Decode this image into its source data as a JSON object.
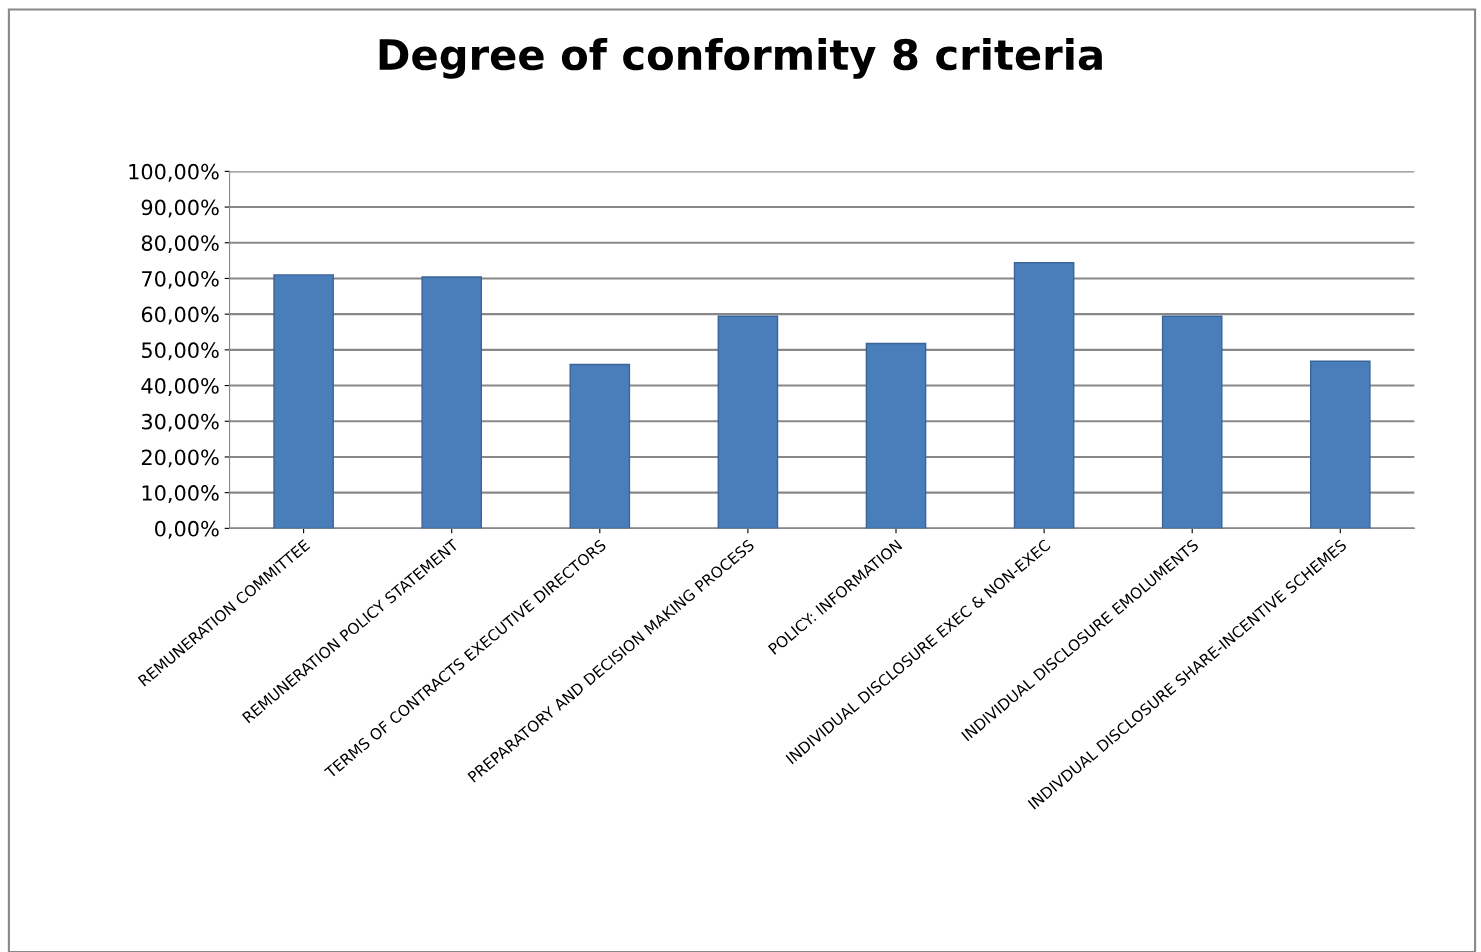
{
  "chart_data": {
    "type": "bar",
    "title": "Degree of conformity 8 criteria",
    "categories": [
      "REMUNERATION COMMITTEE",
      "REMUNERATION POLICY STATEMENT",
      "TERMS OF CONTRACTS EXECUTIVE DIRECTORS",
      "PREPARATORY AND DECISION MAKING PROCESS",
      "POLICY: INFORMATION",
      "INDIVIDUAL DISCLOSURE EXEC & NON-EXEC",
      "INDIVIDUAL DISCLOSURE EMOLUMENTS",
      "INDIVDUAL DISCLOSURE SHARE-INCENTIVE SCHEMES"
    ],
    "values": [
      71,
      70.4,
      45.9,
      59.4,
      51.8,
      74.4,
      59.4,
      46.8
    ],
    "color": "#4a7ebb",
    "ylim": [
      0,
      100
    ],
    "yticks": [
      {
        "value": 0,
        "label": "0,00%"
      },
      {
        "value": 10,
        "label": "10,00%"
      },
      {
        "value": 20,
        "label": "20,00%"
      },
      {
        "value": 30,
        "label": "30,00%"
      },
      {
        "value": 40,
        "label": "40,00%"
      },
      {
        "value": 50,
        "label": "50,00%"
      },
      {
        "value": 60,
        "label": "60,00%"
      },
      {
        "value": 70,
        "label": "70,00%"
      },
      {
        "value": 80,
        "label": "80,00%"
      },
      {
        "value": 90,
        "label": "90,00%"
      },
      {
        "value": 100,
        "label": "100,00%"
      }
    ],
    "grid": "y"
  }
}
